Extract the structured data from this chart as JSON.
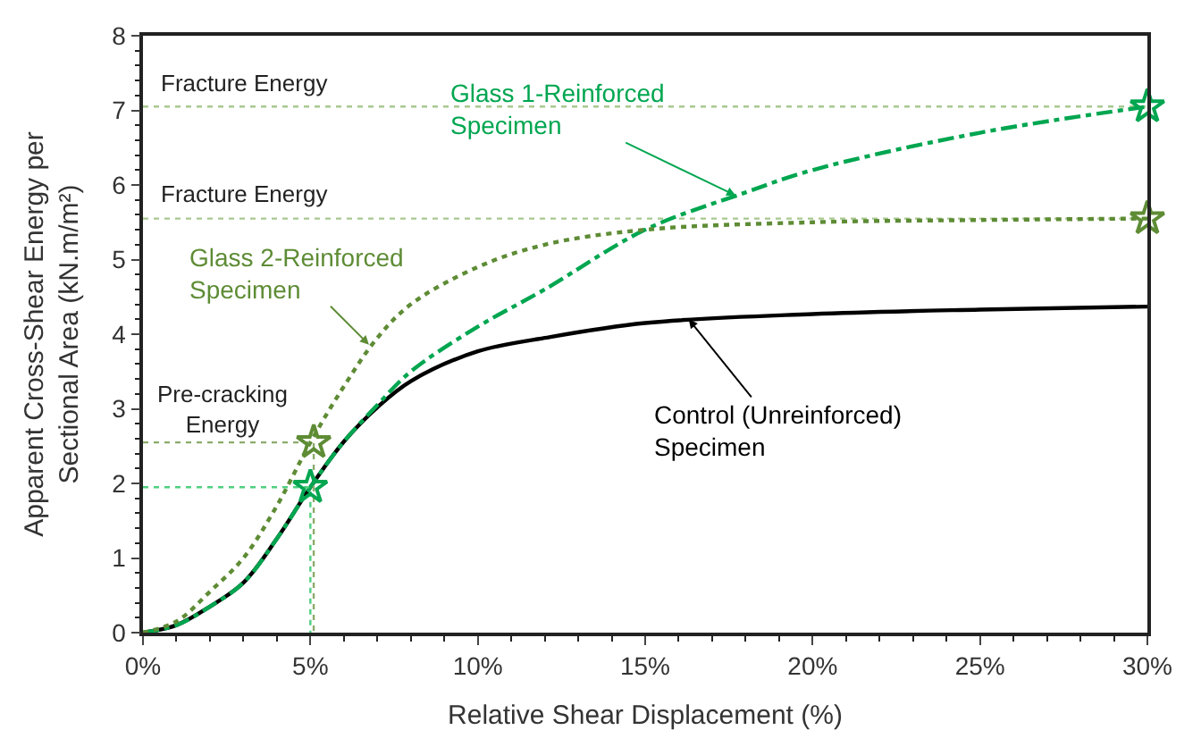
{
  "chart_data": {
    "type": "line",
    "xlabel": "Relative Shear Displacement (%)",
    "ylabel": "Apparent Cross-Shear Energy per\nSectional Area (kN.m/m²)",
    "xlim": [
      0,
      30
    ],
    "ylim": [
      0,
      8
    ],
    "xticks": [
      {
        "value": 0,
        "label": "0%"
      },
      {
        "value": 5,
        "label": "5%"
      },
      {
        "value": 10,
        "label": "10%"
      },
      {
        "value": 15,
        "label": "15%"
      },
      {
        "value": 20,
        "label": "20%"
      },
      {
        "value": 25,
        "label": "25%"
      },
      {
        "value": 30,
        "label": "30%"
      }
    ],
    "yticks": [
      0,
      1,
      2,
      3,
      4,
      5,
      6,
      7,
      8
    ],
    "series": [
      {
        "color": "#000000",
        "line_style": "solid",
        "marker": "none",
        "x": [
          0,
          1,
          2,
          3,
          4,
          5,
          6,
          7,
          8,
          10,
          12,
          15,
          20,
          25,
          30
        ],
        "values": [
          0,
          0.1,
          0.35,
          0.67,
          1.26,
          1.95,
          2.56,
          3.02,
          3.37,
          3.77,
          3.95,
          4.15,
          4.27,
          4.33,
          4.37
        ]
      },
      {
        "color": "#00a650",
        "line_style": "dashed",
        "marker": "none",
        "x": [
          0,
          1,
          2,
          3,
          4,
          5,
          6,
          7,
          8,
          10,
          12,
          15,
          18,
          20,
          25,
          30
        ],
        "values": [
          0,
          0.1,
          0.35,
          0.67,
          1.26,
          1.95,
          2.56,
          3.05,
          3.5,
          4.1,
          4.6,
          5.4,
          5.9,
          6.2,
          6.7,
          7.05
        ]
      },
      {
        "color": "#5e8c35",
        "line_style": "dotted",
        "marker": "none",
        "x": [
          0,
          1,
          2,
          3,
          4,
          5,
          6,
          7,
          8,
          10,
          12,
          15,
          20,
          25,
          30
        ],
        "values": [
          0,
          0.15,
          0.55,
          1.0,
          1.7,
          2.55,
          3.3,
          3.95,
          4.4,
          4.9,
          5.2,
          5.4,
          5.5,
          5.53,
          5.55
        ]
      },
      {
        "color": "#4fcf7f",
        "line_style": "dotted",
        "marker": "none",
        "x": [
          0,
          5,
          5
        ],
        "values": [
          1.95,
          1.95,
          0
        ]
      },
      {
        "color": "#8aab6a",
        "line_style": "dotted",
        "marker": "none",
        "x": [
          0,
          5.1,
          5.1
        ],
        "values": [
          2.55,
          2.55,
          0
        ]
      },
      {
        "type": "scatter",
        "color": "#00a650",
        "marker": "star",
        "x": [
          5,
          30
        ],
        "values": [
          1.95,
          7.05
        ]
      },
      {
        "type": "scatter",
        "color": "#5e8c35",
        "marker": "star",
        "x": [
          5.1,
          30
        ],
        "values": [
          2.55,
          5.55
        ]
      }
    ],
    "ref_lines": [
      {
        "axis": "y",
        "value": 7.05,
        "label": "Fracture Energy",
        "color": "#a8c890",
        "line_style": "dotted"
      },
      {
        "axis": "y",
        "value": 5.55,
        "label": "Fracture Energy",
        "color": "#a8c890",
        "line_style": "dotted"
      }
    ],
    "annotations": [
      {
        "text": "Glass 1-Reinforced\nSpecimen",
        "x": 17.7,
        "y": 5.86
      },
      {
        "text": "Glass 2-Reinforced\nSpecimen",
        "x": 6.75,
        "y": 3.86
      },
      {
        "text": "Control (Unreinforced)\nSpecimen",
        "x": 16.3,
        "y": 4.2
      },
      "Pre-cracking\nEnergy"
    ]
  }
}
